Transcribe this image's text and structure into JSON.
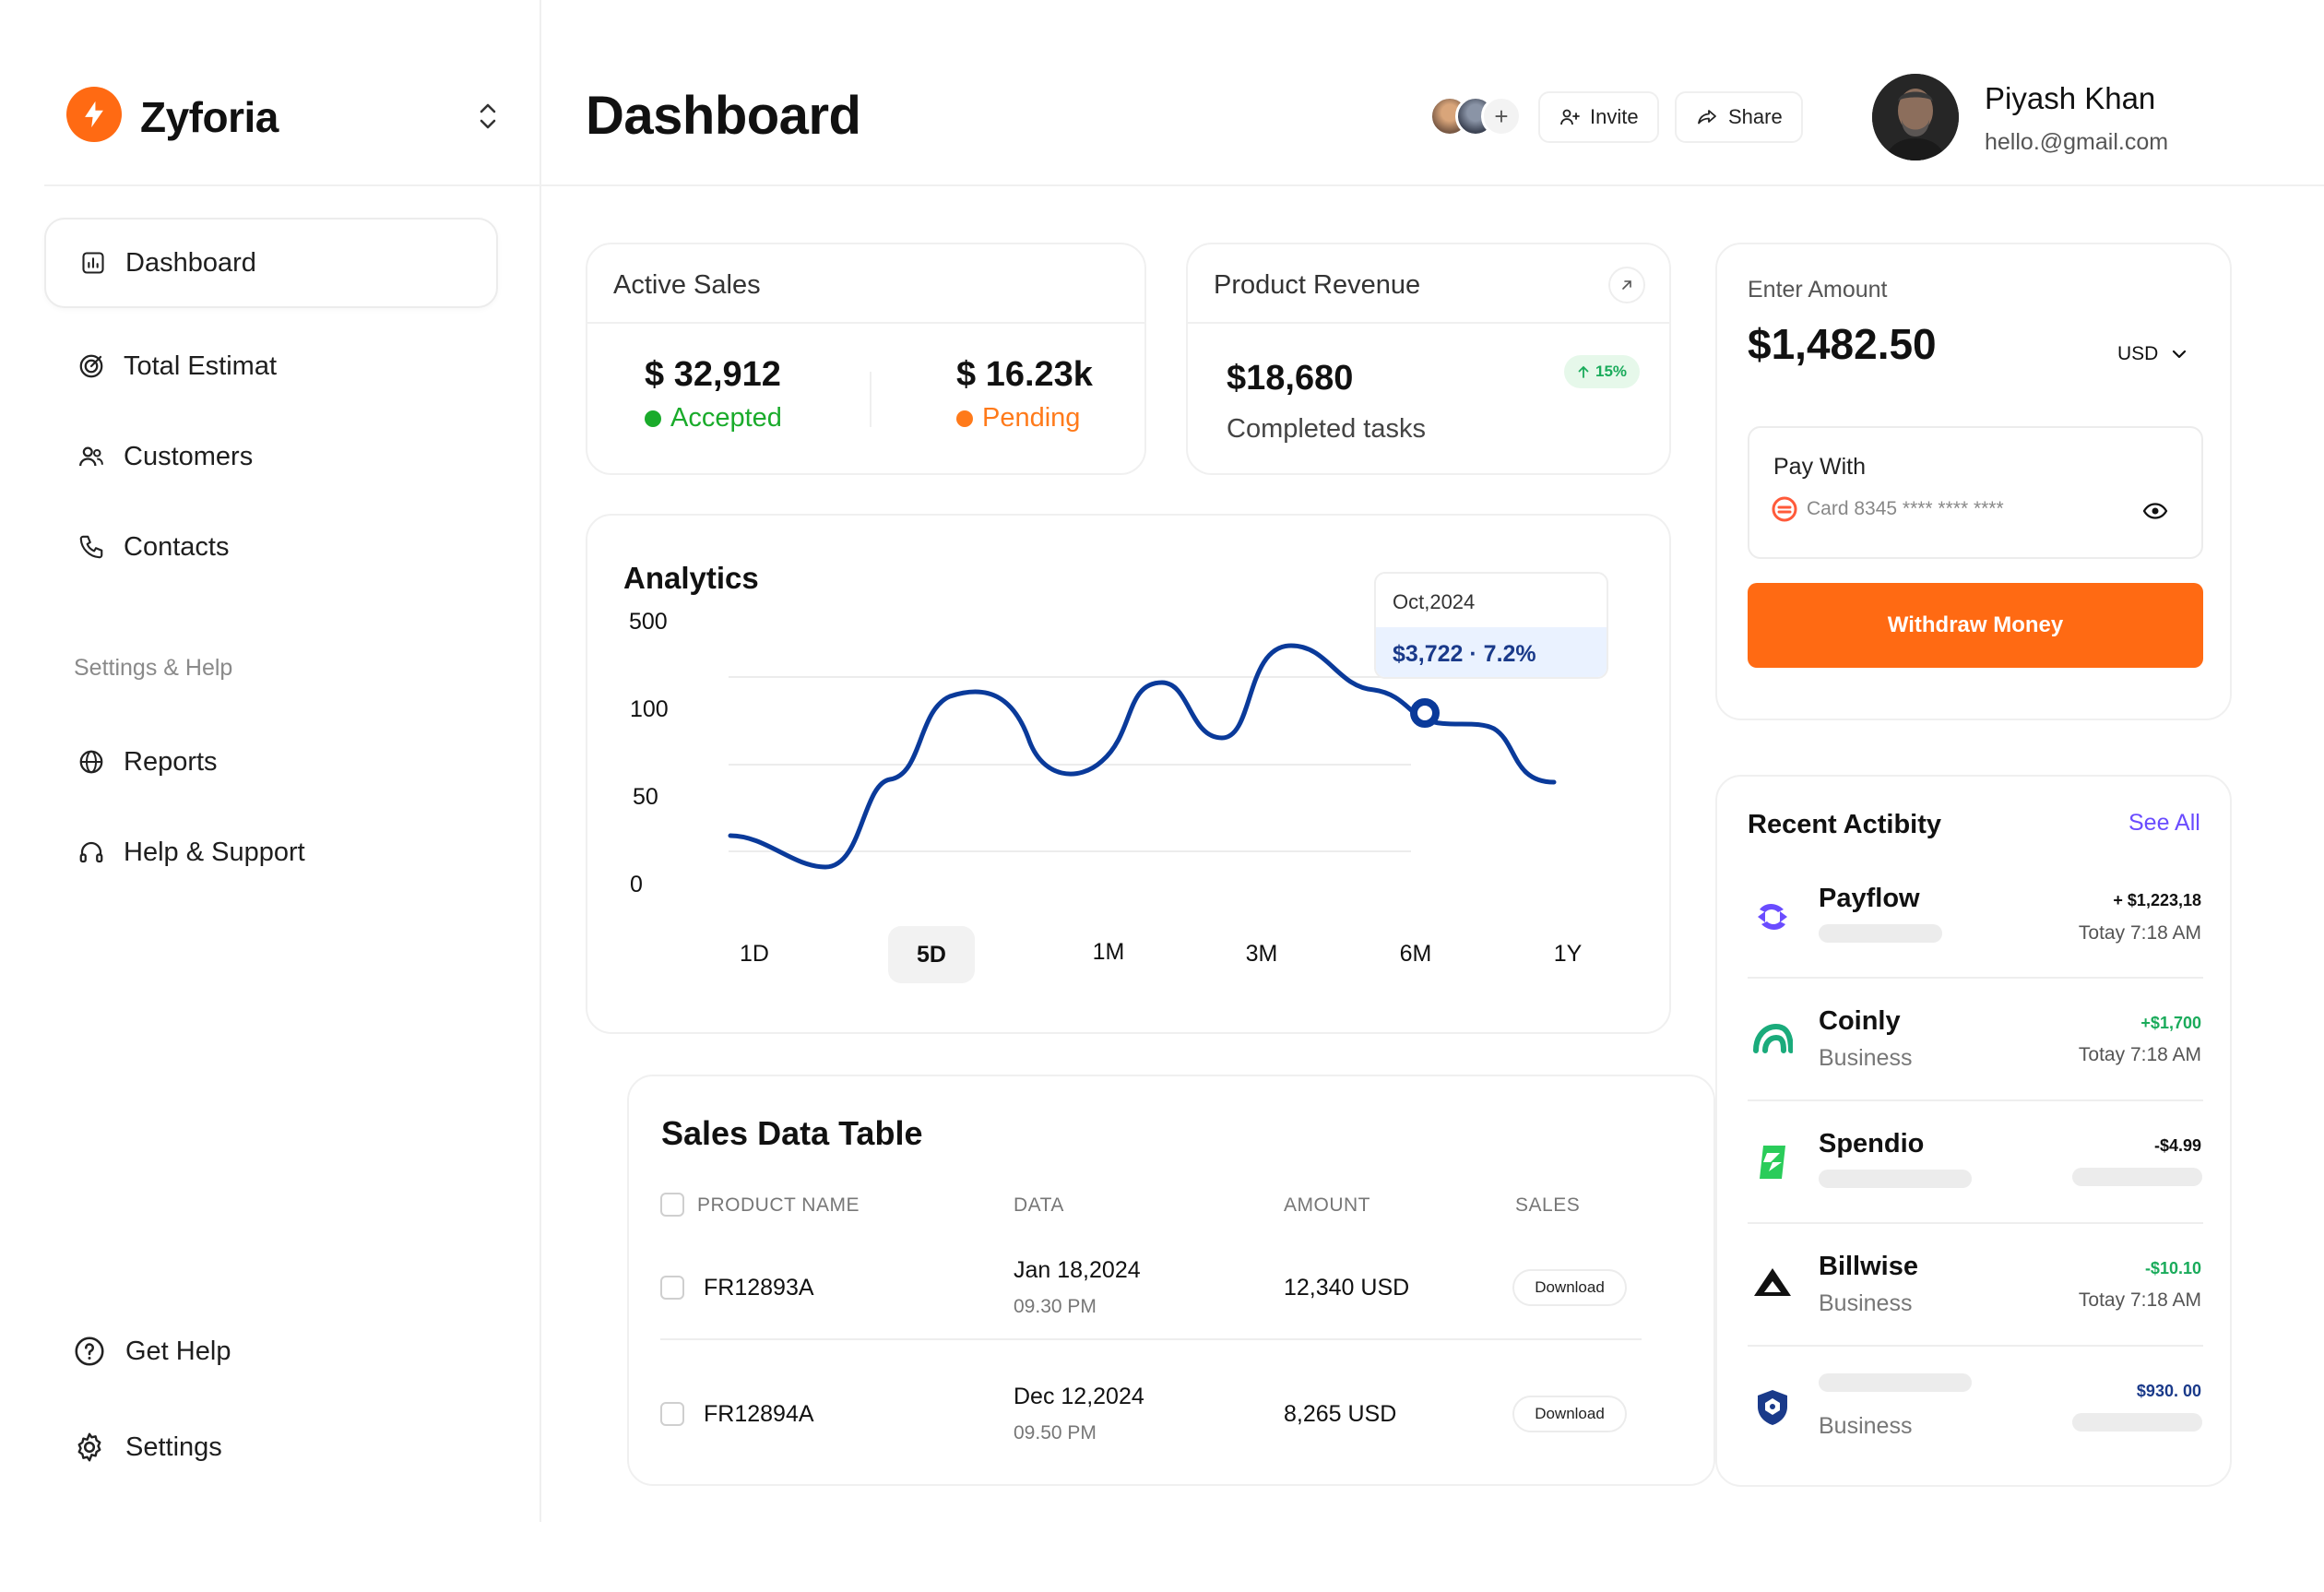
{
  "brand": {
    "name": "Zyforia"
  },
  "sidebar": {
    "items": [
      {
        "label": "Dashboard",
        "icon": "bar-chart-icon",
        "active": true
      },
      {
        "label": "Total Estimat",
        "icon": "target-icon"
      },
      {
        "label": "Customers",
        "icon": "users-icon"
      },
      {
        "label": "Contacts",
        "icon": "phone-icon"
      }
    ],
    "section_label": "Settings & Help",
    "section_items": [
      {
        "label": "Reports",
        "icon": "globe-icon"
      },
      {
        "label": "Help & Support",
        "icon": "headphones-icon"
      }
    ],
    "bottom_items": [
      {
        "label": "Get Help",
        "icon": "question-circle-icon"
      },
      {
        "label": "Settings",
        "icon": "gear-icon"
      }
    ]
  },
  "header": {
    "title": "Dashboard",
    "invite_label": "Invite",
    "share_label": "Share",
    "collaborators_add": "+"
  },
  "user": {
    "name": "Piyash Khan",
    "email": "hello.@gmail.com"
  },
  "active_sales": {
    "title": "Active Sales",
    "accepted_value": "$ 32,912",
    "accepted_label": "Accepted",
    "pending_value": "$ 16.23k",
    "pending_label": "Pending",
    "colors": {
      "accepted": "#1aab2b",
      "pending": "#ff7a1a"
    }
  },
  "product_revenue": {
    "title": "Product Revenue",
    "value": "$18,680",
    "label": "Completed tasks",
    "badge": "15%"
  },
  "analytics": {
    "title": "Analytics",
    "y_ticks": [
      "500",
      "100",
      "50",
      "0"
    ],
    "ranges": [
      "1D",
      "5D",
      "1M",
      "3M",
      "6M",
      "1Y"
    ],
    "active_range": "5D",
    "tooltip_date": "Oct,2024",
    "tooltip_value": "$3,722 · 7.2%",
    "line_color": "#0a3a9a"
  },
  "sales_table": {
    "title": "Sales Data Table",
    "columns": [
      "PRODUCT NAME",
      "DATA",
      "AMOUNT",
      "SALES"
    ],
    "rows": [
      {
        "product": "FR12893A",
        "date": "Jan 18,2024",
        "time": "09.30 PM",
        "amount": "12,340 USD",
        "action": "Download"
      },
      {
        "product": "FR12894A",
        "date": "Dec 12,2024",
        "time": "09.50 PM",
        "amount": "8,265 USD",
        "action": "Download"
      }
    ]
  },
  "withdraw": {
    "label": "Enter Amount",
    "amount": "$1,482.50",
    "currency": "USD",
    "pay_with_label": "Pay With",
    "card_text": "Card 8345 **** **** ****",
    "button_label": "Withdraw Money",
    "accent": "#ff6a13"
  },
  "recent_activity": {
    "title": "Recent Actibity",
    "see_all": "See All",
    "items": [
      {
        "name": "Payflow",
        "sub": "",
        "amount": "+ $1,223,18",
        "time": "Totay 7:18 AM",
        "amount_color": "#111111",
        "logo": "payflow-logo-icon"
      },
      {
        "name": "Coinly",
        "sub": "Business",
        "amount": "+$1,700",
        "time": "Totay 7:18 AM",
        "amount_color": "#1aab5b",
        "logo": "coinly-logo-icon"
      },
      {
        "name": "Spendio",
        "sub": "",
        "amount": "-$4.99",
        "time": "",
        "amount_color": "#111111",
        "logo": "spendio-logo-icon"
      },
      {
        "name": "Billwise",
        "sub": "Business",
        "amount": "-$10.10",
        "time": "Totay 7:18 AM",
        "amount_color": "#1aab5b",
        "logo": "billwise-logo-icon"
      },
      {
        "name": "",
        "sub": "Business",
        "amount": "$930. 00",
        "time": "",
        "amount_color": "#1a3a8a",
        "logo": "shield-logo-icon"
      }
    ]
  }
}
